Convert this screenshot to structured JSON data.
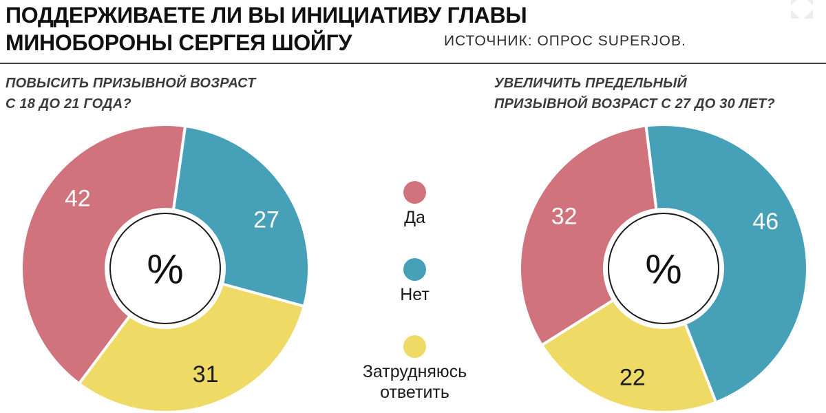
{
  "header": {
    "title_lines": [
      "ПОДДЕРЖИВАЕТЕ ЛИ ВЫ ИНИЦИАТИВУ ГЛАВЫ",
      "МИНОБОРОНЫ СЕРГЕЯ ШОЙГУ"
    ],
    "source_label": "ИСТОЧНИК: ОПРОС SUPERJOB.",
    "expand_icon": "expand-arrows-icon",
    "expand_icon_color": "#ededed"
  },
  "legend": {
    "items": [
      {
        "label": "Да",
        "color": "#d0737d"
      },
      {
        "label": "Нет",
        "color": "#46a0b8"
      },
      {
        "label": "Затрудняюсь ответить",
        "color": "#f0da66"
      }
    ]
  },
  "chart_data": [
    {
      "type": "pie",
      "subtype": "donut",
      "title": "ПОВЫСИТЬ ПРИЗЫВНОЙ ВОЗРАСТ С 18 ДО 21 ГОДА?",
      "question_lines": [
        "ПОВЫСИТЬ ПРИЗЫВНОЙ ВОЗРАСТ",
        "С 18 ДО 21 ГОДА?"
      ],
      "unit_center_label": "%",
      "start_angle_deg": 8,
      "slices_clockwise": [
        {
          "label": "Нет",
          "value": 27,
          "color": "#46a0b8",
          "value_color": "#ffffff",
          "label_angle_deg": 64
        },
        {
          "label": "Затрудняюсь ответить",
          "value": 31,
          "color": "#f0da66",
          "value_color": "#1c1c1c",
          "label_angle_deg": 159
        },
        {
          "label": "Да",
          "value": 42,
          "color": "#d0737d",
          "value_color": "#ffffff",
          "label_angle_deg": 309
        }
      ]
    },
    {
      "type": "pie",
      "subtype": "donut",
      "title": "УВЕЛИЧИТЬ ПРЕДЕЛЬНЫЙ ПРИЗЫВНОЙ ВОЗРАСТ С 27 ДО 30 ЛЕТ?",
      "question_lines": [
        "УВЕЛИЧИТЬ ПРЕДЕЛЬНЫЙ",
        "ПРИЗЫВНОЙ ВОЗРАСТ С 27 ДО 30 ЛЕТ?"
      ],
      "unit_center_label": "%",
      "start_angle_deg": -7,
      "slices_clockwise": [
        {
          "label": "Нет",
          "value": 46,
          "color": "#46a0b8",
          "value_color": "#ffffff",
          "label_angle_deg": 65
        },
        {
          "label": "Затрудняюсь ответить",
          "value": 22,
          "color": "#f0da66",
          "value_color": "#1c1c1c",
          "label_angle_deg": 196
        },
        {
          "label": "Да",
          "value": 32,
          "color": "#d0737d",
          "value_color": "#ffffff",
          "label_angle_deg": 298
        }
      ]
    }
  ]
}
